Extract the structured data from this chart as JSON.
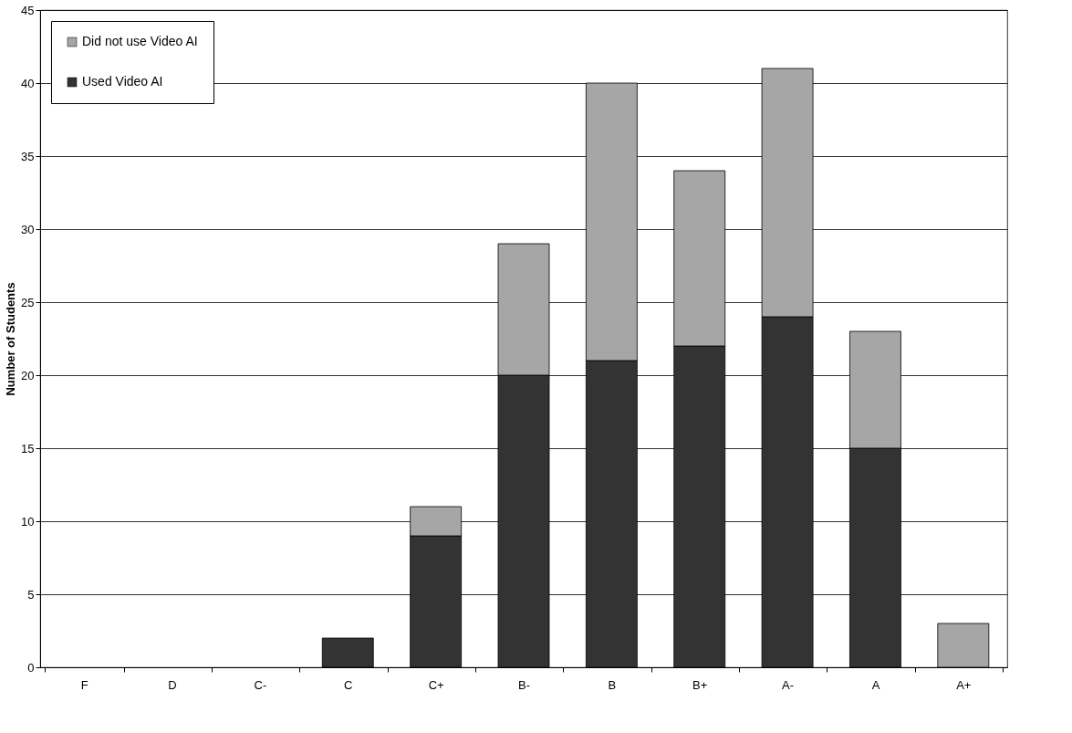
{
  "chart_data": {
    "type": "bar",
    "stacked": true,
    "ylabel": "Number of Students",
    "categories": [
      "F",
      "D",
      "C-",
      "C",
      "C+",
      "B-",
      "B",
      "B+",
      "A-",
      "A",
      "A+"
    ],
    "series": [
      {
        "name": "Used Video AI",
        "color": "#333333",
        "values": [
          0,
          0,
          0,
          2,
          9,
          20,
          21,
          22,
          24,
          15,
          0
        ]
      },
      {
        "name": "Did not use Video AI",
        "color": "#a6a6a6",
        "values": [
          0,
          0,
          0,
          0,
          2,
          9,
          19,
          12,
          17,
          8,
          3
        ]
      }
    ],
    "ylim": [
      0,
      45
    ],
    "yticks": [
      0,
      5,
      10,
      15,
      20,
      25,
      30,
      35,
      40,
      45
    ],
    "grid": "y",
    "legend": "top left"
  }
}
